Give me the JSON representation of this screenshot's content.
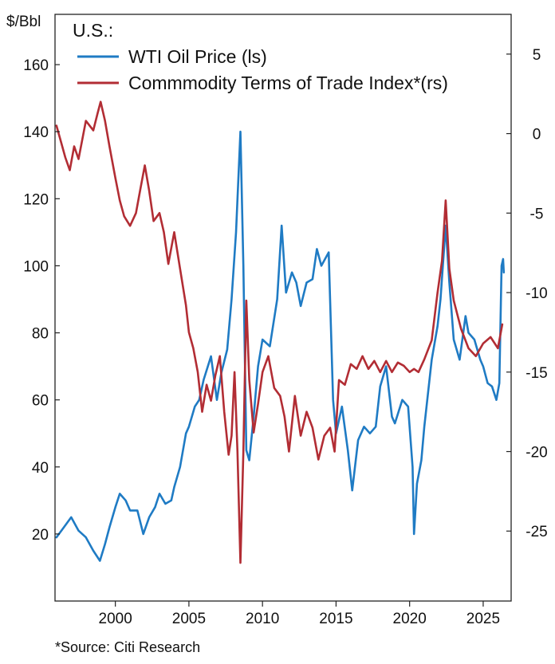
{
  "chart_data": {
    "type": "line",
    "title": "",
    "legend_title": "U.S.:",
    "left_axis": {
      "label": "$/Bbl",
      "ylim": [
        0,
        175
      ],
      "ticks": [
        20,
        40,
        60,
        80,
        100,
        120,
        140,
        160
      ]
    },
    "right_axis": {
      "label": "",
      "ylim": [
        -29.4,
        7.5
      ],
      "ticks": [
        5,
        0,
        -5,
        -10,
        -15,
        -20,
        -25
      ]
    },
    "x_axis": {
      "xlim": [
        1995.9,
        2026.9
      ],
      "ticks": [
        2000,
        2005,
        2010,
        2015,
        2020,
        2025
      ]
    },
    "series": [
      {
        "name": "WTI Oil Price",
        "legend_label": "WTI Oil Price (ls)",
        "axis": "left",
        "color": "#1f7bc4",
        "x": [
          1996.0,
          1996.5,
          1997.0,
          1997.5,
          1998.0,
          1998.5,
          1998.95,
          1999.3,
          1999.6,
          2000.0,
          2000.3,
          2000.7,
          2001.0,
          2001.5,
          2001.9,
          2002.3,
          2002.7,
          2003.0,
          2003.4,
          2003.8,
          2004.0,
          2004.4,
          2004.8,
          2005.0,
          2005.4,
          2005.7,
          2006.0,
          2006.5,
          2006.9,
          2007.2,
          2007.6,
          2007.9,
          2008.2,
          2008.5,
          2008.7,
          2008.9,
          2009.1,
          2009.4,
          2009.7,
          2010.0,
          2010.5,
          2011.0,
          2011.3,
          2011.6,
          2012.0,
          2012.3,
          2012.6,
          2013.0,
          2013.4,
          2013.7,
          2014.0,
          2014.5,
          2014.8,
          2015.0,
          2015.4,
          2015.8,
          2016.1,
          2016.5,
          2016.9,
          2017.3,
          2017.7,
          2018.0,
          2018.4,
          2018.8,
          2019.0,
          2019.5,
          2019.9,
          2020.2,
          2020.3,
          2020.5,
          2020.8,
          2021.0,
          2021.5,
          2021.9,
          2022.1,
          2022.45,
          2022.7,
          2023.0,
          2023.4,
          2023.8,
          2024.0,
          2024.4,
          2024.8,
          2025.0,
          2025.3,
          2025.6,
          2025.9,
          2026.1,
          2026.25,
          2026.35,
          2026.4
        ],
        "values": [
          19,
          22,
          25,
          21,
          19,
          15,
          12,
          17,
          22,
          28,
          32,
          30,
          27,
          27,
          20,
          25,
          28,
          32,
          29,
          30,
          34,
          40,
          50,
          52,
          58,
          60,
          66,
          73,
          60,
          68,
          75,
          90,
          110,
          140,
          100,
          45,
          42,
          55,
          70,
          78,
          76,
          90,
          112,
          92,
          98,
          95,
          88,
          95,
          96,
          105,
          100,
          104,
          60,
          50,
          58,
          45,
          33,
          48,
          52,
          50,
          52,
          64,
          70,
          55,
          53,
          60,
          58,
          40,
          20,
          35,
          42,
          52,
          72,
          82,
          90,
          112,
          95,
          78,
          72,
          85,
          80,
          78,
          72,
          70,
          65,
          64,
          60,
          65,
          100,
          102,
          98
        ]
      },
      {
        "name": "Commodity Terms of Trade Index",
        "legend_label": "Commmodity Terms of Trade Index*(rs)",
        "axis": "right",
        "color": "#b22d34",
        "x": [
          1996.0,
          1996.3,
          1996.6,
          1996.9,
          1997.2,
          1997.5,
          1998.0,
          1998.5,
          1998.8,
          1999.0,
          1999.3,
          1999.6,
          2000.0,
          2000.3,
          2000.6,
          2001.0,
          2001.4,
          2001.7,
          2002.0,
          2002.3,
          2002.6,
          2003.0,
          2003.3,
          2003.6,
          2004.0,
          2004.4,
          2004.8,
          2005.0,
          2005.3,
          2005.6,
          2005.9,
          2006.2,
          2006.5,
          2006.8,
          2007.1,
          2007.4,
          2007.7,
          2007.9,
          2008.1,
          2008.3,
          2008.5,
          2008.7,
          2008.9,
          2009.1,
          2009.4,
          2009.7,
          2010.0,
          2010.4,
          2010.8,
          2011.2,
          2011.5,
          2011.8,
          2012.2,
          2012.6,
          2013.0,
          2013.4,
          2013.8,
          2014.2,
          2014.6,
          2014.9,
          2015.2,
          2015.6,
          2016.0,
          2016.4,
          2016.8,
          2017.2,
          2017.6,
          2018.0,
          2018.4,
          2018.8,
          2019.2,
          2019.6,
          2020.0,
          2020.3,
          2020.6,
          2021.0,
          2021.5,
          2021.9,
          2022.2,
          2022.45,
          2022.7,
          2023.0,
          2023.5,
          2024.0,
          2024.5,
          2025.0,
          2025.5,
          2026.0,
          2026.3
        ],
        "values": [
          0.5,
          -0.5,
          -1.5,
          -2.3,
          -0.8,
          -1.6,
          0.8,
          0.2,
          1.3,
          2.0,
          0.8,
          -0.8,
          -2.8,
          -4.2,
          -5.2,
          -5.8,
          -5.0,
          -3.5,
          -2.0,
          -3.6,
          -5.5,
          -5.0,
          -6.2,
          -8.2,
          -6.2,
          -8.5,
          -10.8,
          -12.5,
          -13.5,
          -15.0,
          -17.5,
          -15.8,
          -16.8,
          -15.2,
          -14.0,
          -17.5,
          -20.2,
          -19.0,
          -15.0,
          -20.0,
          -27.0,
          -20.0,
          -10.5,
          -15.5,
          -18.8,
          -17.0,
          -15.0,
          -14.0,
          -16.0,
          -16.5,
          -17.8,
          -20.0,
          -16.5,
          -19.0,
          -17.5,
          -18.5,
          -20.5,
          -19.0,
          -18.5,
          -20.0,
          -15.5,
          -15.8,
          -14.5,
          -14.8,
          -14.0,
          -14.8,
          -14.3,
          -15.0,
          -14.3,
          -15.0,
          -14.4,
          -14.6,
          -15.0,
          -14.8,
          -15.0,
          -14.2,
          -13.0,
          -10.0,
          -8.0,
          -4.2,
          -8.5,
          -10.5,
          -12.3,
          -13.5,
          -14.0,
          -13.2,
          -12.8,
          -13.5,
          -12.0
        ]
      }
    ],
    "source_note": "*Source: Citi Research"
  }
}
